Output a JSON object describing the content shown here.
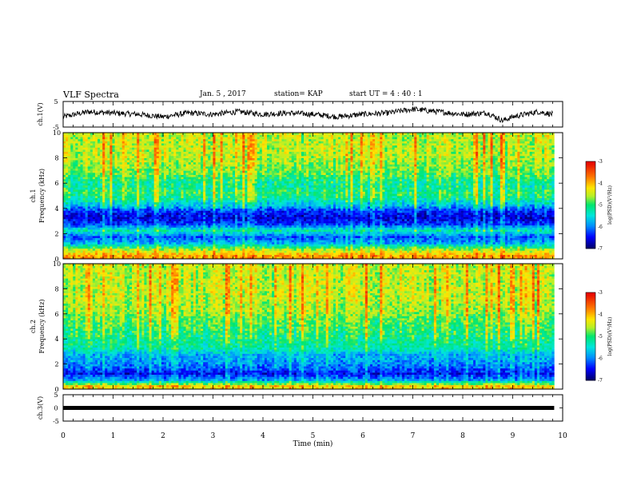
{
  "header": {
    "title": "VLF Spectra",
    "date": "Jan. 5 , 2017",
    "station": "station= KAP",
    "start_ut": "start UT =  4 : 40 : 1"
  },
  "colorbar": {
    "label": "log(PSD)(V²/Hz)",
    "ticks": [
      "-3",
      "-4",
      "-5",
      "-6",
      "-7"
    ],
    "colors": [
      "#ff0000",
      "#ffa500",
      "#ffff00",
      "#00ff00",
      "#00ffff",
      "#0000ff",
      "#000080"
    ]
  },
  "chart_data": [
    {
      "type": "line",
      "panel": "ch1-waveform",
      "ylabel": "ch.1(V)",
      "ylim": [
        -5,
        5
      ],
      "yticks": [
        "5",
        "-5"
      ],
      "x": [
        0,
        0.5,
        1,
        1.5,
        2,
        2.5,
        3,
        3.5,
        4,
        4.5,
        5,
        5.5,
        6,
        6.5,
        7,
        7.5,
        8,
        8.5,
        8.8,
        9,
        9.5,
        9.8
      ],
      "y": [
        -1.0,
        1.0,
        0.5,
        0.0,
        -1.0,
        0.5,
        0.0,
        1.0,
        0.0,
        0.5,
        0.0,
        -1.0,
        0.0,
        0.5,
        2.0,
        1.0,
        0.0,
        0.5,
        -2.5,
        -1.0,
        1.0,
        0.0
      ],
      "color": "#000000"
    },
    {
      "type": "heatmap",
      "panel": "ch1-spectrogram",
      "ylabel": "ch.1\nFrequency (kHz)",
      "ylim": [
        0,
        10
      ],
      "yticks": [
        "0",
        "2",
        "4",
        "6",
        "8",
        "10"
      ],
      "xlim": [
        0,
        9.83
      ],
      "value_range": [
        -7,
        -3
      ],
      "profile_khz": [
        0.25,
        0.75,
        1.25,
        1.75,
        2.25,
        2.75,
        3.25,
        3.75,
        4.25,
        4.75,
        5.25,
        5.75,
        6.25,
        6.75,
        7.25,
        7.75,
        8.25,
        8.75,
        9.25,
        9.75
      ],
      "profile_log_psd": [
        -3.9,
        -4.6,
        -5.8,
        -6.2,
        -5.3,
        -6.3,
        -6.6,
        -6.4,
        -5.7,
        -5.2,
        -5.0,
        -5.2,
        -5.1,
        -4.8,
        -4.7,
        -4.6,
        -4.5,
        -4.5,
        -4.5,
        -4.5
      ]
    },
    {
      "type": "heatmap",
      "panel": "ch2-spectrogram",
      "ylabel": "ch.2\nFrequency (kHz)",
      "ylim": [
        0,
        10
      ],
      "yticks": [
        "0",
        "2",
        "4",
        "6",
        "8",
        "10"
      ],
      "xlim": [
        0,
        9.83
      ],
      "value_range": [
        -7,
        -3
      ],
      "profile_khz": [
        0.25,
        0.75,
        1.25,
        1.75,
        2.25,
        2.75,
        3.25,
        3.75,
        4.25,
        4.75,
        5.25,
        5.75,
        6.25,
        6.75,
        7.25,
        7.75,
        8.25,
        8.75,
        9.25,
        9.75
      ],
      "profile_log_psd": [
        -4.2,
        -5.9,
        -6.5,
        -6.1,
        -5.9,
        -5.8,
        -5.3,
        -5.2,
        -5.1,
        -5.0,
        -4.9,
        -4.8,
        -4.6,
        -4.6,
        -4.5,
        -4.5,
        -4.5,
        -4.5,
        -4.5,
        -4.5
      ]
    },
    {
      "type": "line",
      "panel": "ch3-waveform",
      "ylabel": "ch.3(V)",
      "ylim": [
        -5,
        5
      ],
      "yticks": [
        "5",
        "0",
        "-5"
      ],
      "x": [
        0,
        9.83
      ],
      "y": [
        0,
        0
      ],
      "color": "#000000"
    }
  ],
  "xaxis": {
    "label": "Time (min)",
    "ticks": [
      "0",
      "1",
      "2",
      "3",
      "4",
      "5",
      "6",
      "7",
      "8",
      "9",
      "10"
    ],
    "xlim": [
      0,
      10
    ]
  }
}
